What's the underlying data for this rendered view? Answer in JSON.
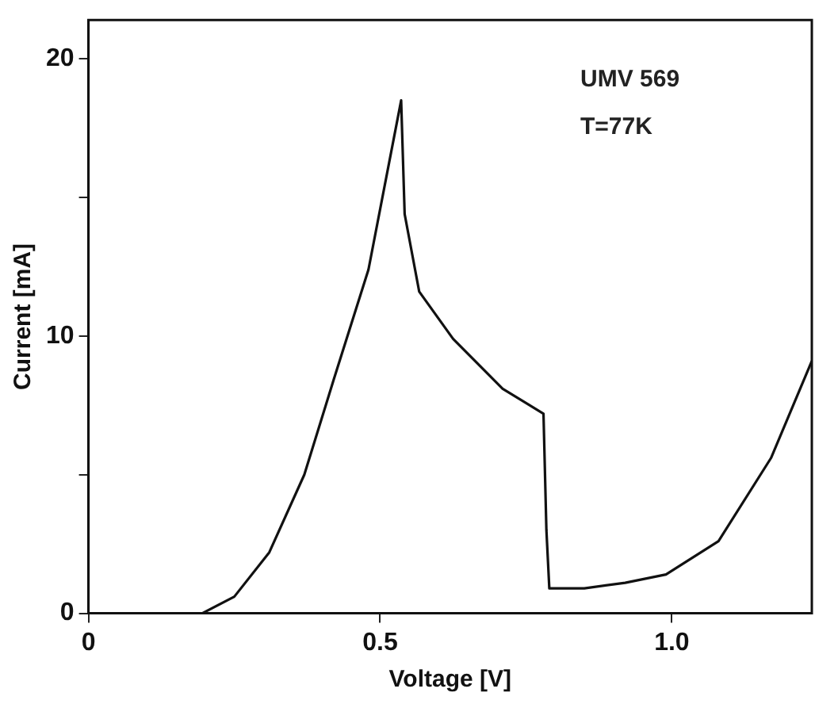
{
  "chart_data": {
    "type": "line",
    "xlabel": "Voltage [V]",
    "ylabel": "Current [mA]",
    "annotations": [
      "UMV 569",
      "T=77K"
    ],
    "xlim": [
      0,
      1.24
    ],
    "xticks": [
      0,
      0.5,
      {
        "value": 1,
        "label": "1.0"
      }
    ],
    "ylim": [
      0,
      21.4
    ],
    "yticks": [
      0,
      {
        "value": 5,
        "label": null
      },
      10,
      {
        "value": 15,
        "label": null
      },
      20
    ],
    "grid": false,
    "legend": false,
    "marker": "none",
    "line_style": "solid",
    "series": [
      {
        "color": "#111111",
        "x": [
          0,
          0.1,
          0.195,
          0.25,
          0.31,
          0.37,
          0.42,
          0.48,
          0.536,
          0.542,
          0.567,
          0.625,
          0.71,
          0.78,
          0.785,
          0.79,
          0.85,
          0.92,
          0.99,
          1.08,
          1.17,
          1.24
        ],
        "values": [
          0,
          0,
          0,
          0.6,
          2.2,
          5.0,
          8.4,
          12.4,
          18.5,
          14.4,
          11.6,
          9.9,
          8.1,
          7.2,
          3,
          0.9,
          0.9,
          1.1,
          1.4,
          2.6,
          5.6,
          9.1
        ]
      }
    ]
  }
}
